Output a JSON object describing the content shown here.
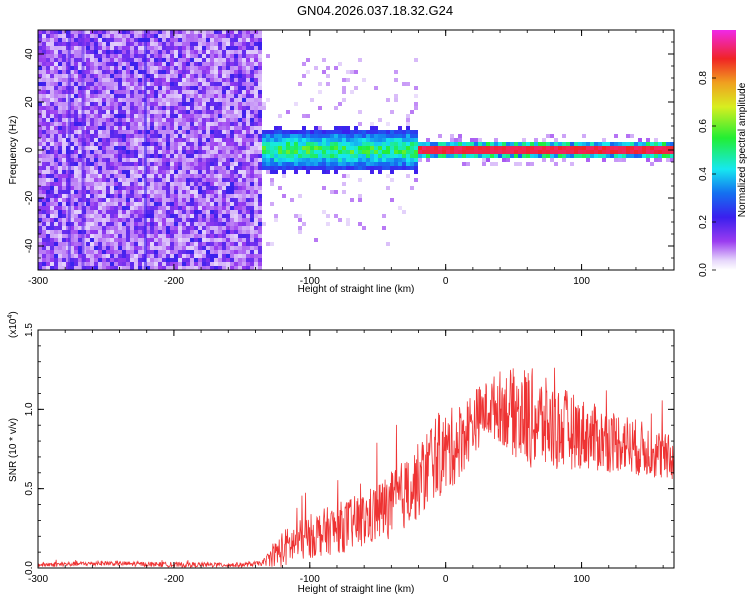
{
  "title": "GN04.2026.037.18.32.G24",
  "colors": {
    "snr_line": "#ee3333",
    "spectrogram_core": "#ff2020",
    "spectrogram_low": "#7a22ee",
    "spectrogram_faint": "#d9c8fa"
  },
  "chart_data": [
    {
      "type": "heatmap",
      "title": "",
      "xlabel": "Height of straight line (km)",
      "ylabel": "Frequency (Hz)",
      "xlim": [
        -300,
        168
      ],
      "ylim": [
        -50,
        50
      ],
      "x_ticks": [
        -300,
        -200,
        -100,
        0,
        100
      ],
      "x_tick_labels": [
        "-300",
        "-200",
        "-100",
        "0",
        "100"
      ],
      "y_ticks": [
        -40,
        -20,
        0,
        20,
        40
      ],
      "y_tick_labels": [
        "-40",
        "-20",
        "0",
        "20",
        "40"
      ],
      "colorbar": {
        "label": "Normalized spectral amplitude",
        "range": [
          0,
          1
        ],
        "ticks": [
          0.0,
          0.2,
          0.4,
          0.6,
          0.8
        ],
        "tick_labels": [
          "0.0",
          "0.2",
          "0.4",
          "0.6",
          "0.8"
        ],
        "colormap": "rainbow (white-violet-blue-cyan-green-yellow-red-magenta)"
      },
      "regions": [
        {
          "x_range": [
            -300,
            -135
          ],
          "freq_halfwidth": 50,
          "amplitude": 0.15,
          "description": "broadband noise"
        },
        {
          "x_range": [
            -135,
            -20
          ],
          "freq_halfwidth": 8,
          "amplitude": 0.35,
          "description": "signal band around 0 Hz"
        },
        {
          "x_range": [
            -20,
            168
          ],
          "freq_halfwidth": 1.5,
          "amplitude": 1.0,
          "description": "narrow carrier at 0 Hz"
        }
      ],
      "grid": false
    },
    {
      "type": "line",
      "title": "",
      "xlabel": "Height of straight line (km)",
      "ylabel": "SNR (10 * v/v)",
      "y_scale_label": "(x10^4)",
      "xlim": [
        -300,
        168
      ],
      "ylim": [
        0,
        1.5
      ],
      "x_ticks": [
        -300,
        -200,
        -100,
        0,
        100
      ],
      "x_tick_labels": [
        "-300",
        "-200",
        "-100",
        "0",
        "100"
      ],
      "y_ticks": [
        0.0,
        0.5,
        1.0,
        1.5
      ],
      "y_tick_labels": [
        "0.0",
        "0.5",
        "1.0",
        "1.5"
      ],
      "grid": false,
      "series": [
        {
          "color": "#ee3333",
          "envelope": {
            "x": [
              -300,
              -250,
              -200,
              -150,
              -135,
              -120,
              -100,
              -80,
              -60,
              -40,
              -25,
              -15,
              -10,
              0,
              10,
              20,
              30,
              40,
              50,
              60,
              70,
              80,
              90,
              100,
              110,
              120,
              130,
              140,
              150,
              160,
              168
            ],
            "y": [
              0.02,
              0.03,
              0.02,
              0.02,
              0.03,
              0.12,
              0.2,
              0.25,
              0.3,
              0.4,
              0.5,
              0.6,
              0.7,
              0.72,
              0.8,
              0.92,
              1.0,
              1.02,
              0.98,
              0.95,
              0.92,
              0.88,
              0.87,
              0.85,
              0.82,
              0.8,
              0.8,
              0.76,
              0.74,
              0.7,
              0.68
            ]
          },
          "noise_amplitude": {
            "x": [
              -300,
              -135,
              -120,
              -60,
              -20,
              -10,
              0,
              30,
              60,
              100,
              168
            ],
            "y": [
              0.01,
              0.01,
              0.08,
              0.12,
              0.16,
              0.18,
              0.18,
              0.12,
              0.22,
              0.15,
              0.1
            ]
          }
        }
      ]
    }
  ]
}
